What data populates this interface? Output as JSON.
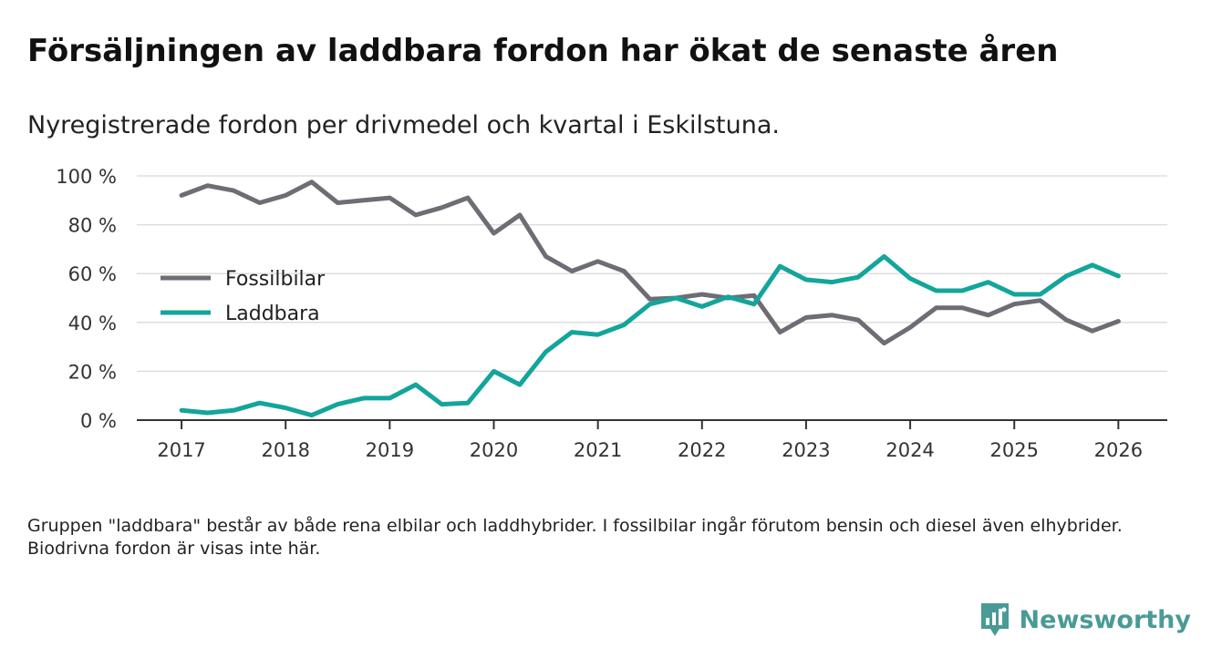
{
  "header": {
    "title": "Försäljningen av laddbara fordon har ökat de senaste åren",
    "subtitle": "Nyregistrerade fordon per drivmedel och kvartal i Eskilstuna."
  },
  "chart_data": {
    "type": "line",
    "title": "Försäljningen av laddbara fordon har ökat de senaste åren",
    "subtitle": "Nyregistrerade fordon per drivmedel och kvartal i Eskilstuna.",
    "xlabel": "",
    "ylabel": "",
    "x": [
      2017,
      2017.25,
      2017.5,
      2017.75,
      2018,
      2018.25,
      2018.5,
      2018.75,
      2019,
      2019.25,
      2019.5,
      2019.75,
      2020,
      2020.25,
      2020.5,
      2020.75,
      2021,
      2021.25,
      2021.5,
      2021.75,
      2022,
      2022.25,
      2022.5,
      2022.75,
      2023,
      2023.25,
      2023.5,
      2023.75,
      2024,
      2024.25,
      2024.5,
      2024.75,
      2025,
      2025.25,
      2025.5,
      2025.75,
      2026
    ],
    "xlim": [
      2016.57,
      2026.47
    ],
    "ylim": [
      0,
      100
    ],
    "x_ticks": [
      2017,
      2018,
      2019,
      2020,
      2021,
      2022,
      2023,
      2024,
      2025,
      2026
    ],
    "x_tick_labels": [
      "2017",
      "2018",
      "2019",
      "2020",
      "2021",
      "2022",
      "2023",
      "2024",
      "2025",
      "2026"
    ],
    "y_ticks": [
      0,
      20,
      40,
      60,
      80,
      100
    ],
    "y_tick_labels": [
      "0 %",
      "20 %",
      "40 %",
      "60 %",
      "80 %",
      "100 %"
    ],
    "grid": "horizontal",
    "legend_position": "left-middle",
    "series": [
      {
        "name": "Fossilbilar",
        "color": "#6e6c74",
        "values": [
          92,
          96,
          94,
          89,
          92,
          97.5,
          89,
          90,
          91,
          84,
          87,
          91,
          76.5,
          84,
          67,
          61,
          65,
          61,
          49.5,
          50,
          51.5,
          50,
          51,
          36,
          42,
          43,
          41,
          31.5,
          38,
          46,
          46,
          43,
          47.5,
          49,
          41,
          36.5,
          40.5
        ]
      },
      {
        "name": "Laddbara",
        "color": "#13a59b",
        "values": [
          4,
          3,
          4,
          7,
          5,
          2,
          6.5,
          9,
          9,
          14.5,
          6.5,
          7,
          20,
          14.5,
          28,
          36,
          35,
          39,
          47.5,
          50,
          46.5,
          50.5,
          47.5,
          63,
          57.5,
          56.5,
          58.5,
          67,
          58,
          53,
          53,
          56.5,
          51.5,
          51.5,
          59,
          63.5,
          59
        ]
      }
    ]
  },
  "footer": {
    "note": "Gruppen \"laddbara\" består av både rena elbilar och laddhybrider. I fossilbilar ingår förutom bensin och diesel även elhybrider. Biodrivna fordon är visas inte här.",
    "brand": "Newsworthy",
    "brand_color": "#4a9a96"
  }
}
